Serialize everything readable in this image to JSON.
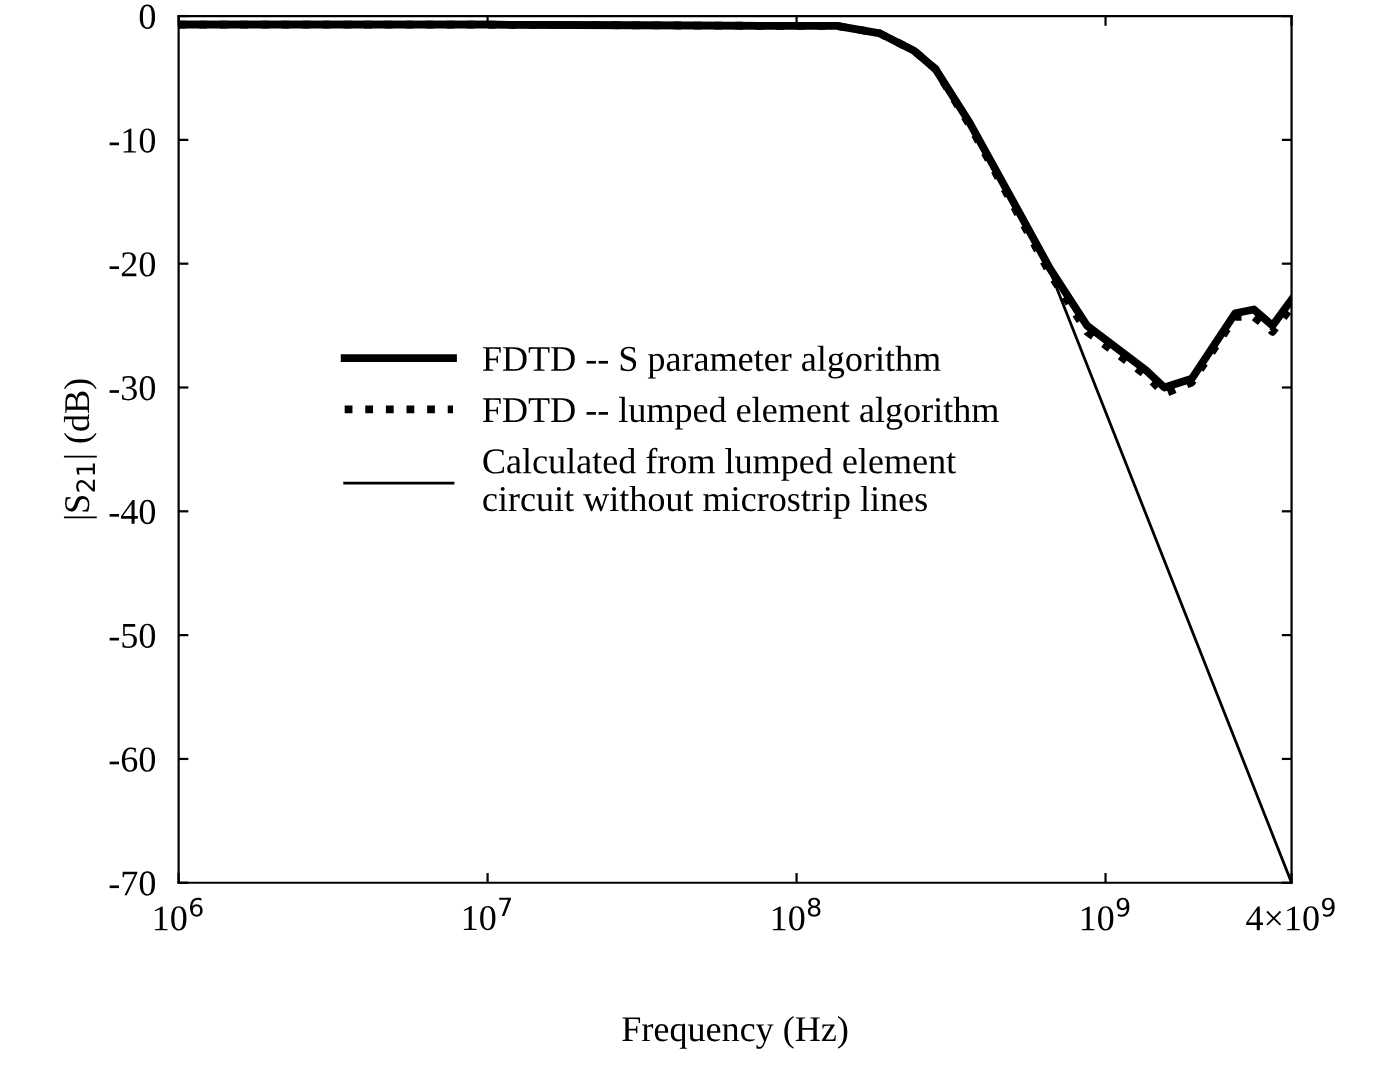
{
  "chart_data": {
    "type": "line",
    "xlabel": "Frequency (Hz)",
    "ylabel": "|S$_{21}$| (dB)",
    "log": "x",
    "xlim": [
      1000000,
      4000000000
    ],
    "ylim": [
      -70,
      0
    ],
    "xticks": [
      {
        "value": 1000000,
        "label": "10$^{6}$"
      },
      {
        "value": 10000000,
        "label": "10$^{7}$"
      },
      {
        "value": 100000000,
        "label": "10$^{8}$"
      },
      {
        "value": 1000000000,
        "label": "10$^{9}$"
      },
      {
        "value": 4000000000,
        "label": "4×10$^{9}$"
      }
    ],
    "yticks": [
      0,
      -10,
      -20,
      -30,
      -40,
      -50,
      -60,
      -70
    ],
    "grid": false,
    "legend": "center left",
    "series": [
      {
        "name": "FDTD -- S parameter algorithm",
        "color": "#000000",
        "line_style": "solid",
        "x": [
          1000000,
          10000000,
          100000000,
          135000000,
          186000000,
          240000000,
          282000000,
          363000000,
          513000000,
          661000000,
          871000000,
          1350000000,
          1550000000,
          1900000000,
          2630000000,
          3020000000,
          3470000000,
          4000000000
        ],
        "values": [
          -0.7,
          -0.7,
          -0.8,
          -0.8,
          -1.4,
          -2.8,
          -4.3,
          -8.6,
          -15.4,
          -20.4,
          -25,
          -28.6,
          -30,
          -29.3,
          -24,
          -23.7,
          -25,
          -22.9
        ]
      },
      {
        "name": "FDTD -- lumped element algorithm",
        "color": "#000000",
        "line_style": "dotted",
        "x": [
          1000000,
          10000000,
          100000000,
          135000000,
          186000000,
          240000000,
          282000000,
          363000000,
          513000000,
          661000000,
          871000000,
          1350000000,
          1550000000,
          1900000000,
          2630000000,
          3020000000,
          3470000000,
          4000000000
        ],
        "values": [
          -0.7,
          -0.7,
          -0.8,
          -0.8,
          -1.4,
          -2.8,
          -4.3,
          -8.8,
          -15.7,
          -20.8,
          -25.5,
          -29,
          -30.5,
          -29.6,
          -24.3,
          -24.3,
          -25.5,
          -23.5
        ]
      },
      {
        "name": "Calculated from lumped element\ncircuit without microstrip lines",
        "color": "#000000",
        "line_style": "solid",
        "x": [
          1000000,
          10000000,
          100000000,
          135000000,
          186000000,
          240000000,
          282000000,
          363000000,
          513000000,
          661000000,
          4000000000
        ],
        "values": [
          -0.5,
          -0.5,
          -0.6,
          -0.7,
          -1.3,
          -2.7,
          -4.2,
          -8.6,
          -15.4,
          -20.6,
          -70
        ]
      }
    ]
  }
}
